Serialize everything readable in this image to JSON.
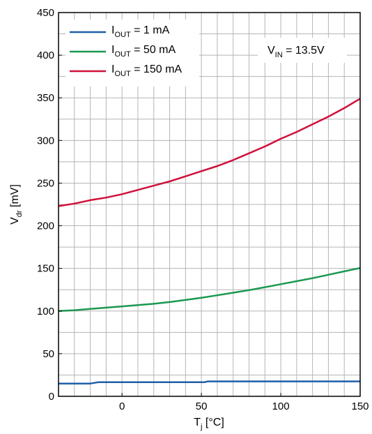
{
  "chart_data": {
    "type": "line",
    "xlabel": {
      "main": "T",
      "sub": "j",
      "unit": " [°C]"
    },
    "ylabel": {
      "main": "V",
      "sub": "dr",
      "unit": " [mV]"
    },
    "xlim": [
      -40,
      150
    ],
    "ylim": [
      0,
      450
    ],
    "x_ticks": [
      0,
      50,
      100,
      150
    ],
    "x_tick_labels": [
      "0",
      "50",
      "100",
      "150"
    ],
    "y_ticks": [
      0,
      50,
      100,
      150,
      200,
      250,
      300,
      350,
      400,
      450
    ],
    "y_tick_labels": [
      "0",
      "50",
      "100",
      "150",
      "200",
      "250",
      "300",
      "350",
      "400",
      "450"
    ],
    "grid": true,
    "legend_position": "top-left",
    "annotation": {
      "main": "V",
      "sub": "IN",
      "rest": " = 13.5V"
    },
    "series": [
      {
        "name": "I_OUT = 1 mA",
        "legend": {
          "main": "I",
          "sub": "OUT",
          "rest": " = 1 mA"
        },
        "color": "#1f5fa8",
        "x": [
          -40,
          -20,
          -15,
          0,
          20,
          40,
          52,
          54,
          80,
          100,
          120,
          150
        ],
        "y": [
          15,
          15,
          16.5,
          16.5,
          16.5,
          16.5,
          16.5,
          17.5,
          17.5,
          17.5,
          17.5,
          17.5
        ]
      },
      {
        "name": "I_OUT = 50 mA",
        "legend": {
          "main": "I",
          "sub": "OUT",
          "rest": " = 50 mA"
        },
        "color": "#1a9850",
        "x": [
          -40,
          -30,
          -20,
          -10,
          0,
          10,
          20,
          30,
          40,
          50,
          60,
          70,
          80,
          90,
          100,
          110,
          120,
          130,
          140,
          150
        ],
        "y": [
          100,
          101,
          102.5,
          104,
          105.5,
          107,
          108.5,
          110.5,
          113,
          115.5,
          118.5,
          121.5,
          124.5,
          128,
          131.5,
          135,
          138.5,
          142.5,
          146.5,
          150.5
        ]
      },
      {
        "name": "I_OUT = 150 mA",
        "legend": {
          "main": "I",
          "sub": "OUT",
          "rest": " = 150 mA"
        },
        "color": "#d0103a",
        "x": [
          -40,
          -30,
          -20,
          -10,
          0,
          10,
          20,
          30,
          40,
          50,
          60,
          70,
          80,
          90,
          100,
          110,
          120,
          130,
          140,
          150
        ],
        "y": [
          223,
          226,
          230,
          233,
          237,
          242,
          247,
          252,
          258,
          264,
          270,
          277,
          285,
          293,
          302,
          310,
          319,
          328,
          338,
          349
        ]
      }
    ]
  }
}
